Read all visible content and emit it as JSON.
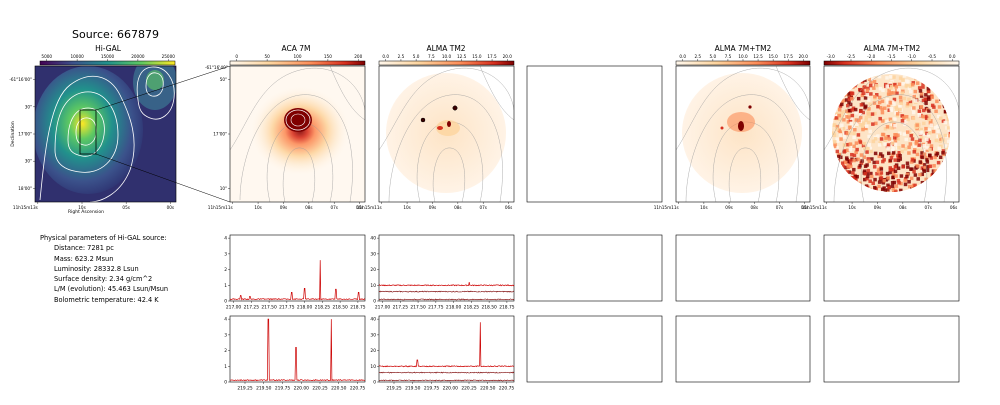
{
  "source_title": "Source: 667879",
  "panels": {
    "higal": "Hi-GAL",
    "aca": "ACA 7M",
    "alma_tm2": "ALMA TM2",
    "alma_7m_tm2": "ALMA 7M+TM2",
    "alma_7m_tm2_alpha": "ALMA 7M+TM2"
  },
  "params": {
    "heading": "Physical parameters of Hi-GAL source:",
    "lines": [
      "Distance: 7281 pc",
      "Mass: 623.2 Msun",
      "Luminosity: 28332.8 Lsun",
      "Surface density: 2.34 g/cm^2",
      "L/M (evolution): 45.463 Lsun/Msun",
      "Bolometric temperature: 42.4 K"
    ]
  },
  "colors": {
    "viridis": [
      "#440154",
      "#3b528b",
      "#21918c",
      "#5ec962",
      "#fde725"
    ],
    "orrd": [
      "#fff7ec",
      "#fdd49e",
      "#fc8d59",
      "#d7301f",
      "#7f0000"
    ],
    "spectrum_line": "#cc0000"
  },
  "chart_data": [
    {
      "type": "heatmap",
      "name": "higal",
      "colorbar_ticks": [
        "5000",
        "10000",
        "15000",
        "20000",
        "25000"
      ],
      "xlabel": "Right Ascension",
      "ylabel": "Declination",
      "x_ticks": [
        "11h15m13s",
        "10s",
        "05s",
        "00s"
      ],
      "y_ticks": [
        "-61°16'00\"",
        "30\"",
        "17'00\"",
        "30\"",
        "18'00\""
      ]
    },
    {
      "type": "heatmap",
      "name": "aca",
      "colorbar_ticks": [
        "0",
        "50",
        "100",
        "150",
        "200"
      ],
      "corner_label": "-61°16'40\"",
      "x_ticks": [
        "11h15m11s",
        "10s",
        "09s",
        "08s",
        "07s",
        "06s"
      ],
      "y_ticks": [
        "50\"",
        "17'00\"",
        "10\""
      ]
    },
    {
      "type": "heatmap",
      "name": "alma_tm2",
      "colorbar_ticks": [
        "0.0",
        "2.5",
        "5.0",
        "7.5",
        "10.0",
        "12.5",
        "15.0",
        "17.5",
        "20.0"
      ],
      "x_ticks": [
        "11h15m11s",
        "10s",
        "09s",
        "08s",
        "07s",
        "06s"
      ]
    },
    {
      "type": "heatmap",
      "name": "alma_7m_tm2",
      "colorbar_ticks": [
        "0.0",
        "2.5",
        "5.0",
        "7.5",
        "10.0",
        "12.5",
        "15.0",
        "17.5",
        "20.0"
      ],
      "x_ticks": [
        "11h15m11s",
        "10s",
        "09s",
        "08s",
        "07s",
        "06s"
      ]
    },
    {
      "type": "heatmap",
      "name": "alma_7m_tm2_alpha",
      "colorbar_ticks": [
        "-3.0",
        "-2.5",
        "-2.0",
        "-1.5",
        "-1.0",
        "-0.5",
        "0.0"
      ],
      "x_ticks": [
        "11h15m11s",
        "10s",
        "09s",
        "08s",
        "07s",
        "06s"
      ]
    },
    {
      "type": "line",
      "name": "aca_spw1",
      "x_ticks": [
        "217.00",
        "217.25",
        "217.50",
        "217.75",
        "218.00",
        "218.25",
        "218.50",
        "218.75"
      ],
      "y_ticks": [
        "0",
        "1",
        "2",
        "3",
        "4"
      ],
      "xlim": [
        216.95,
        218.85
      ],
      "ylim": [
        0,
        4.2
      ],
      "peaks": [
        [
          217.1,
          0.35
        ],
        [
          217.23,
          0.3
        ],
        [
          217.82,
          0.55
        ],
        [
          218.0,
          0.8
        ],
        [
          218.22,
          2.6
        ],
        [
          218.44,
          0.75
        ],
        [
          218.76,
          0.55
        ]
      ]
    },
    {
      "type": "line",
      "name": "alma_spw1",
      "x_ticks": [
        "217.00",
        "217.25",
        "217.50",
        "217.75",
        "218.00",
        "218.25",
        "218.50",
        "218.75"
      ],
      "y_ticks": [
        "0",
        "10",
        "20",
        "30",
        "40"
      ],
      "xlim": [
        216.95,
        218.85
      ],
      "ylim": [
        0,
        42
      ],
      "series_levels": [
        10,
        6,
        1
      ],
      "peaks": [
        [
          218.22,
          12
        ],
        [
          218.44,
          6
        ]
      ]
    },
    {
      "type": "line",
      "name": "aca_spw2",
      "x_ticks": [
        "219.25",
        "219.50",
        "219.75",
        "220.00",
        "220.25",
        "220.50",
        "220.75"
      ],
      "y_ticks": [
        "0",
        "1",
        "2",
        "3",
        "4"
      ],
      "xlim": [
        219.05,
        220.85
      ],
      "ylim": [
        0,
        4.2
      ],
      "peaks": [
        [
          219.56,
          4.0
        ],
        [
          219.93,
          2.2
        ],
        [
          220.4,
          4.0
        ]
      ]
    },
    {
      "type": "line",
      "name": "alma_spw2",
      "x_ticks": [
        "219.25",
        "219.50",
        "219.75",
        "220.00",
        "220.25",
        "220.50",
        "220.75"
      ],
      "y_ticks": [
        "0",
        "10",
        "20",
        "30",
        "40"
      ],
      "xlim": [
        219.05,
        220.85
      ],
      "ylim": [
        0,
        42
      ],
      "series_levels": [
        10,
        6,
        1
      ],
      "peaks": [
        [
          219.56,
          14
        ],
        [
          219.93,
          5
        ],
        [
          220.4,
          38
        ]
      ]
    }
  ]
}
